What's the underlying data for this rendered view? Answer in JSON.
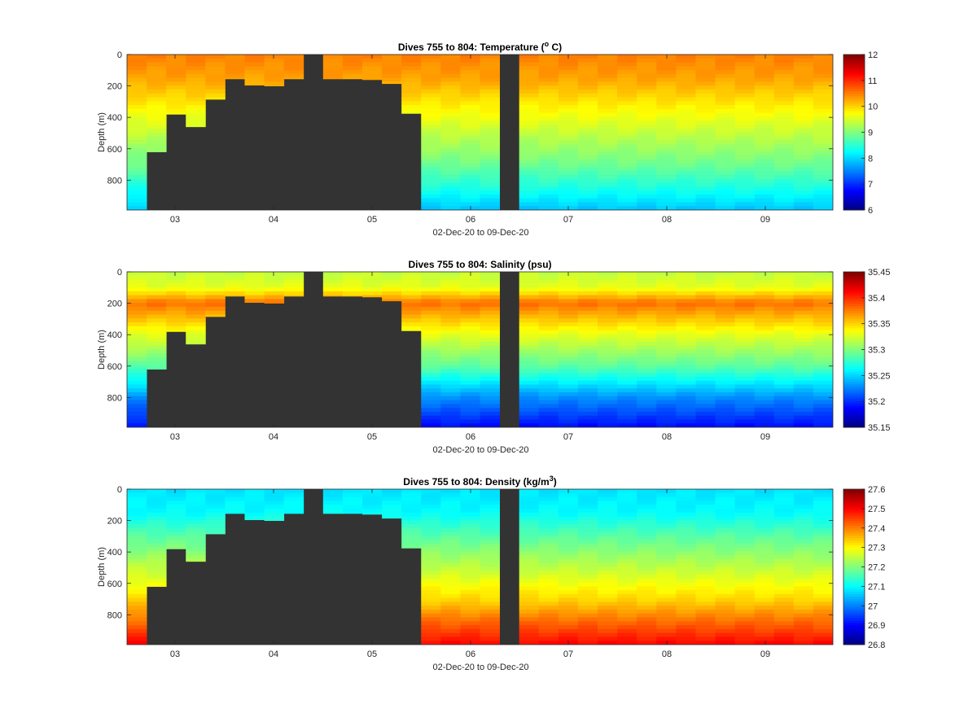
{
  "chart_data": [
    {
      "type": "heatmap",
      "title": "Dives 755 to 804: Temperature (",
      "title_sup": "o",
      "title_after": " C)",
      "xlabel": "02-Dec-20 to 09-Dec-20",
      "ylabel": "Depth (m)",
      "xticks": [
        "03",
        "04",
        "05",
        "06",
        "07",
        "08",
        "09"
      ],
      "yticks": [
        "0",
        "200",
        "400",
        "600",
        "800"
      ],
      "ylim": [
        0,
        990
      ],
      "y_reversed": true,
      "colormap": "jet",
      "clim": [
        6,
        12
      ],
      "colorbar_ticks": [
        "6",
        "7",
        "8",
        "9",
        "10",
        "11",
        "12"
      ],
      "dive_max_depth_m": [
        990,
        620,
        380,
        460,
        285,
        155,
        195,
        200,
        155,
        0,
        155,
        155,
        160,
        185,
        375,
        990,
        990,
        990,
        990,
        0,
        990,
        990,
        990,
        990,
        990,
        990,
        990,
        990,
        990,
        990,
        990,
        990,
        990,
        990,
        990,
        990
      ],
      "profile": {
        "depth_m": [
          0,
          150,
          300,
          500,
          700,
          850,
          990
        ],
        "values": [
          10.5,
          10.3,
          9.9,
          9.4,
          8.9,
          8.4,
          7.9
        ]
      }
    },
    {
      "type": "heatmap",
      "title": "Dives 755 to 804: Salinity (psu)",
      "xlabel": "02-Dec-20 to 09-Dec-20",
      "ylabel": "Depth (m)",
      "xticks": [
        "03",
        "04",
        "05",
        "06",
        "07",
        "08",
        "09"
      ],
      "yticks": [
        "0",
        "200",
        "400",
        "600",
        "800"
      ],
      "ylim": [
        0,
        990
      ],
      "y_reversed": true,
      "colormap": "jet",
      "clim": [
        35.15,
        35.45
      ],
      "colorbar_ticks": [
        "35.15",
        "35.2",
        "35.25",
        "35.3",
        "35.35",
        "35.4",
        "35.45"
      ],
      "dive_max_depth_m": [
        990,
        620,
        380,
        460,
        285,
        155,
        195,
        200,
        155,
        0,
        155,
        155,
        160,
        185,
        375,
        990,
        990,
        990,
        990,
        0,
        990,
        990,
        990,
        990,
        990,
        990,
        990,
        990,
        990,
        990,
        990,
        990,
        990,
        990,
        990,
        990
      ],
      "profile": {
        "depth_m": [
          0,
          100,
          200,
          280,
          400,
          600,
          800,
          990
        ],
        "values": [
          35.32,
          35.33,
          35.38,
          35.36,
          35.33,
          35.29,
          35.23,
          35.19
        ]
      }
    },
    {
      "type": "heatmap",
      "title": "Dives 755 to 804: Density (kg/m",
      "title_sup": "3",
      "title_after": ")",
      "xlabel": "02-Dec-20 to 09-Dec-20",
      "ylabel": "Depth (m)",
      "xticks": [
        "03",
        "04",
        "05",
        "06",
        "07",
        "08",
        "09"
      ],
      "yticks": [
        "0",
        "200",
        "400",
        "600",
        "800"
      ],
      "ylim": [
        0,
        990
      ],
      "y_reversed": true,
      "colormap": "jet",
      "clim": [
        26.8,
        27.6
      ],
      "colorbar_ticks": [
        "26.8",
        "26.9",
        "27",
        "27.1",
        "27.2",
        "27.3",
        "27.4",
        "27.5",
        "27.6"
      ],
      "dive_max_depth_m": [
        990,
        620,
        380,
        460,
        285,
        155,
        195,
        200,
        155,
        0,
        155,
        155,
        160,
        185,
        375,
        990,
        990,
        990,
        990,
        0,
        990,
        990,
        990,
        990,
        990,
        990,
        990,
        990,
        990,
        990,
        990,
        990,
        990,
        990,
        990,
        990
      ],
      "profile": {
        "depth_m": [
          0,
          150,
          300,
          500,
          700,
          850,
          990
        ],
        "values": [
          27.08,
          27.1,
          27.17,
          27.25,
          27.33,
          27.42,
          27.5
        ]
      }
    }
  ],
  "colors": {
    "no_data": "#333333",
    "axis": "#262626"
  }
}
